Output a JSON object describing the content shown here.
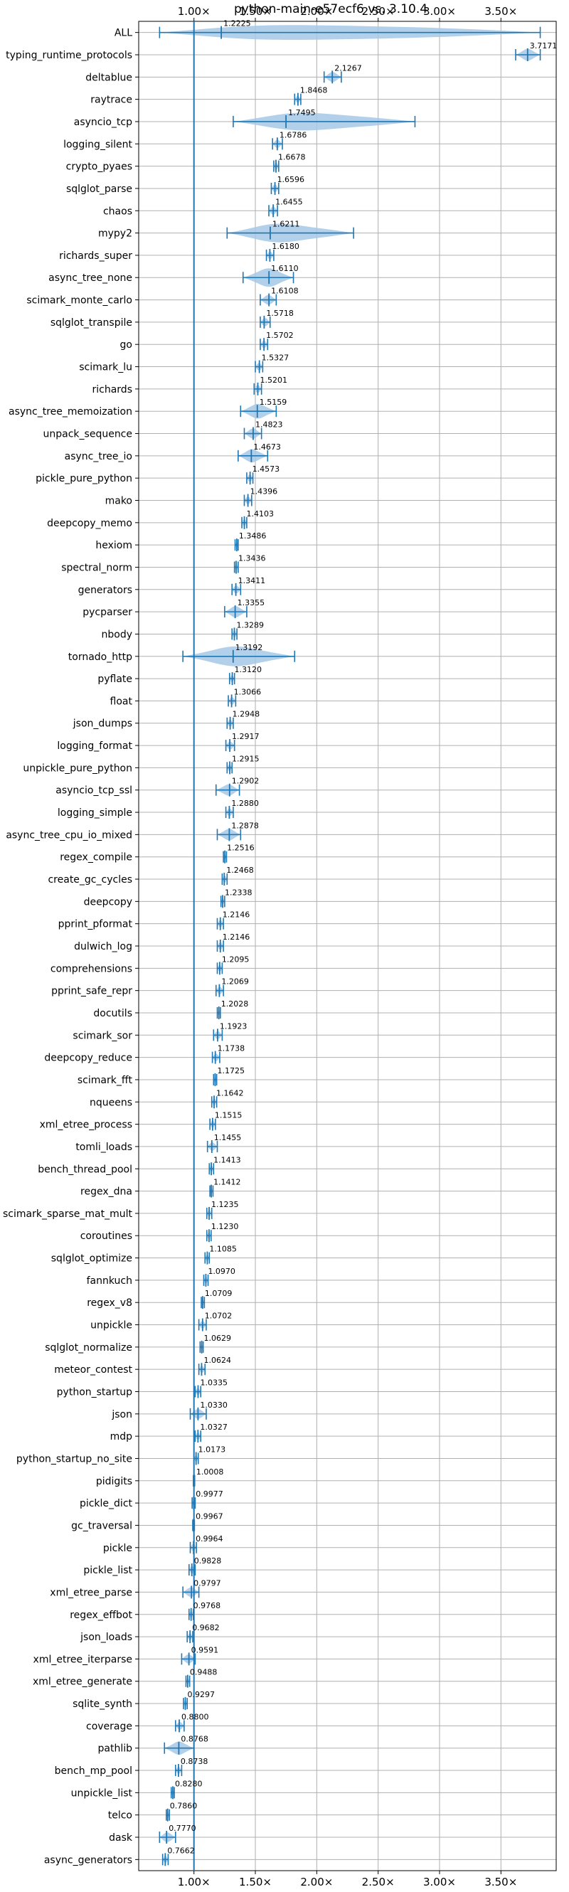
{
  "chart_data": {
    "type": "violin",
    "orientation": "horizontal",
    "title": "python-main-e57ecf6 vs. 3.10.4",
    "xlabel": "",
    "ylabel": "",
    "xlim": [
      0.55,
      3.95
    ],
    "x_ticks": [
      1.0,
      1.5,
      2.0,
      2.5,
      3.0,
      3.5
    ],
    "x_tick_labels": [
      "1.00×",
      "1.50×",
      "2.00×",
      "2.50×",
      "3.00×",
      "3.50×"
    ],
    "x_ticks_top_and_bottom": true,
    "reference_line": 1.0,
    "grid": true,
    "colors": {
      "violin": "#1f77b4",
      "violin_fill": "#a6c8e6",
      "grid": "#b0b0b0",
      "text": "#000000"
    },
    "benchmarks": [
      {
        "name": "ALL",
        "value": 1.2225,
        "min": 0.72,
        "max": 3.82
      },
      {
        "name": "typing_runtime_protocols",
        "value": 3.7171,
        "min": 3.62,
        "max": 3.82
      },
      {
        "name": "deltablue",
        "value": 2.1267,
        "min": 2.06,
        "max": 2.2
      },
      {
        "name": "raytrace",
        "value": 1.8468,
        "min": 1.82,
        "max": 1.87
      },
      {
        "name": "asyncio_tcp",
        "value": 1.7495,
        "min": 1.32,
        "max": 2.8
      },
      {
        "name": "logging_silent",
        "value": 1.6786,
        "min": 1.64,
        "max": 1.72
      },
      {
        "name": "crypto_pyaes",
        "value": 1.6678,
        "min": 1.65,
        "max": 1.69
      },
      {
        "name": "sqlglot_parse",
        "value": 1.6596,
        "min": 1.63,
        "max": 1.69
      },
      {
        "name": "chaos",
        "value": 1.6455,
        "min": 1.61,
        "max": 1.68
      },
      {
        "name": "mypy2",
        "value": 1.6211,
        "min": 1.27,
        "max": 2.3
      },
      {
        "name": "richards_super",
        "value": 1.618,
        "min": 1.59,
        "max": 1.65
      },
      {
        "name": "async_tree_none",
        "value": 1.611,
        "min": 1.4,
        "max": 1.81
      },
      {
        "name": "scimark_monte_carlo",
        "value": 1.6108,
        "min": 1.54,
        "max": 1.67
      },
      {
        "name": "sqlglot_transpile",
        "value": 1.5718,
        "min": 1.54,
        "max": 1.62
      },
      {
        "name": "go",
        "value": 1.5702,
        "min": 1.54,
        "max": 1.6
      },
      {
        "name": "scimark_lu",
        "value": 1.5327,
        "min": 1.5,
        "max": 1.56
      },
      {
        "name": "richards",
        "value": 1.5201,
        "min": 1.49,
        "max": 1.55
      },
      {
        "name": "async_tree_memoization",
        "value": 1.5159,
        "min": 1.38,
        "max": 1.67
      },
      {
        "name": "unpack_sequence",
        "value": 1.4823,
        "min": 1.41,
        "max": 1.55
      },
      {
        "name": "async_tree_io",
        "value": 1.4673,
        "min": 1.36,
        "max": 1.6
      },
      {
        "name": "pickle_pure_python",
        "value": 1.4573,
        "min": 1.43,
        "max": 1.48
      },
      {
        "name": "mako",
        "value": 1.4396,
        "min": 1.41,
        "max": 1.47
      },
      {
        "name": "deepcopy_memo",
        "value": 1.4103,
        "min": 1.39,
        "max": 1.43
      },
      {
        "name": "hexiom",
        "value": 1.3486,
        "min": 1.335,
        "max": 1.36
      },
      {
        "name": "spectral_norm",
        "value": 1.3436,
        "min": 1.33,
        "max": 1.36
      },
      {
        "name": "generators",
        "value": 1.3411,
        "min": 1.31,
        "max": 1.38
      },
      {
        "name": "pycparser",
        "value": 1.3355,
        "min": 1.25,
        "max": 1.43
      },
      {
        "name": "nbody",
        "value": 1.3289,
        "min": 1.31,
        "max": 1.35
      },
      {
        "name": "tornado_http",
        "value": 1.3192,
        "min": 0.91,
        "max": 1.82
      },
      {
        "name": "pyflate",
        "value": 1.312,
        "min": 1.29,
        "max": 1.33
      },
      {
        "name": "float",
        "value": 1.3066,
        "min": 1.28,
        "max": 1.34
      },
      {
        "name": "json_dumps",
        "value": 1.2948,
        "min": 1.27,
        "max": 1.32
      },
      {
        "name": "logging_format",
        "value": 1.2917,
        "min": 1.26,
        "max": 1.33
      },
      {
        "name": "unpickle_pure_python",
        "value": 1.2915,
        "min": 1.27,
        "max": 1.31
      },
      {
        "name": "asyncio_tcp_ssl",
        "value": 1.2902,
        "min": 1.18,
        "max": 1.37
      },
      {
        "name": "logging_simple",
        "value": 1.288,
        "min": 1.26,
        "max": 1.32
      },
      {
        "name": "async_tree_cpu_io_mixed",
        "value": 1.2878,
        "min": 1.19,
        "max": 1.38
      },
      {
        "name": "regex_compile",
        "value": 1.2516,
        "min": 1.24,
        "max": 1.265
      },
      {
        "name": "create_gc_cycles",
        "value": 1.2468,
        "min": 1.23,
        "max": 1.27
      },
      {
        "name": "deepcopy",
        "value": 1.2338,
        "min": 1.22,
        "max": 1.25
      },
      {
        "name": "pprint_pformat",
        "value": 1.2146,
        "min": 1.19,
        "max": 1.24
      },
      {
        "name": "dulwich_log",
        "value": 1.2146,
        "min": 1.19,
        "max": 1.24
      },
      {
        "name": "comprehensions",
        "value": 1.2095,
        "min": 1.19,
        "max": 1.23
      },
      {
        "name": "pprint_safe_repr",
        "value": 1.2069,
        "min": 1.18,
        "max": 1.24
      },
      {
        "name": "docutils",
        "value": 1.2028,
        "min": 1.19,
        "max": 1.215
      },
      {
        "name": "scimark_sor",
        "value": 1.1923,
        "min": 1.16,
        "max": 1.23
      },
      {
        "name": "deepcopy_reduce",
        "value": 1.1738,
        "min": 1.15,
        "max": 1.21
      },
      {
        "name": "scimark_fft",
        "value": 1.1725,
        "min": 1.16,
        "max": 1.185
      },
      {
        "name": "nqueens",
        "value": 1.1642,
        "min": 1.145,
        "max": 1.185
      },
      {
        "name": "xml_etree_process",
        "value": 1.1515,
        "min": 1.13,
        "max": 1.175
      },
      {
        "name": "tomli_loads",
        "value": 1.1455,
        "min": 1.11,
        "max": 1.19
      },
      {
        "name": "bench_thread_pool",
        "value": 1.1413,
        "min": 1.125,
        "max": 1.16
      },
      {
        "name": "regex_dna",
        "value": 1.1412,
        "min": 1.13,
        "max": 1.155
      },
      {
        "name": "scimark_sparse_mat_mult",
        "value": 1.1235,
        "min": 1.105,
        "max": 1.145
      },
      {
        "name": "coroutines",
        "value": 1.123,
        "min": 1.105,
        "max": 1.14
      },
      {
        "name": "sqlglot_optimize",
        "value": 1.1085,
        "min": 1.09,
        "max": 1.125
      },
      {
        "name": "fannkuch",
        "value": 1.097,
        "min": 1.08,
        "max": 1.115
      },
      {
        "name": "regex_v8",
        "value": 1.0709,
        "min": 1.06,
        "max": 1.085
      },
      {
        "name": "unpickle",
        "value": 1.0702,
        "min": 1.04,
        "max": 1.1
      },
      {
        "name": "sqlglot_normalize",
        "value": 1.0629,
        "min": 1.05,
        "max": 1.075
      },
      {
        "name": "meteor_contest",
        "value": 1.0624,
        "min": 1.04,
        "max": 1.09
      },
      {
        "name": "python_startup",
        "value": 1.0335,
        "min": 1.01,
        "max": 1.055
      },
      {
        "name": "json",
        "value": 1.033,
        "min": 0.97,
        "max": 1.1
      },
      {
        "name": "mdp",
        "value": 1.0327,
        "min": 1.01,
        "max": 1.055
      },
      {
        "name": "python_startup_no_site",
        "value": 1.0173,
        "min": 1.0,
        "max": 1.035
      },
      {
        "name": "pidigits",
        "value": 1.0008,
        "min": 0.995,
        "max": 1.006
      },
      {
        "name": "pickle_dict",
        "value": 0.9977,
        "min": 0.985,
        "max": 1.01
      },
      {
        "name": "gc_traversal",
        "value": 0.9967,
        "min": 0.99,
        "max": 1.004
      },
      {
        "name": "pickle",
        "value": 0.9964,
        "min": 0.97,
        "max": 1.02
      },
      {
        "name": "pickle_list",
        "value": 0.9828,
        "min": 0.96,
        "max": 1.01
      },
      {
        "name": "xml_etree_parse",
        "value": 0.9797,
        "min": 0.91,
        "max": 1.04
      },
      {
        "name": "regex_effbot",
        "value": 0.9768,
        "min": 0.96,
        "max": 0.995
      },
      {
        "name": "json_loads",
        "value": 0.9682,
        "min": 0.945,
        "max": 0.99
      },
      {
        "name": "xml_etree_iterparse",
        "value": 0.9591,
        "min": 0.9,
        "max": 1.01
      },
      {
        "name": "xml_etree_generate",
        "value": 0.9488,
        "min": 0.935,
        "max": 0.965
      },
      {
        "name": "sqlite_synth",
        "value": 0.9297,
        "min": 0.915,
        "max": 0.945
      },
      {
        "name": "coverage",
        "value": 0.88,
        "min": 0.85,
        "max": 0.92
      },
      {
        "name": "pathlib",
        "value": 0.8768,
        "min": 0.76,
        "max": 1.0
      },
      {
        "name": "bench_mp_pool",
        "value": 0.8738,
        "min": 0.85,
        "max": 0.9
      },
      {
        "name": "unpickle_list",
        "value": 0.828,
        "min": 0.815,
        "max": 0.84
      },
      {
        "name": "telco",
        "value": 0.786,
        "min": 0.775,
        "max": 0.8
      },
      {
        "name": "dask",
        "value": 0.777,
        "min": 0.72,
        "max": 0.85
      },
      {
        "name": "async_generators",
        "value": 0.7662,
        "min": 0.745,
        "max": 0.79
      }
    ]
  }
}
